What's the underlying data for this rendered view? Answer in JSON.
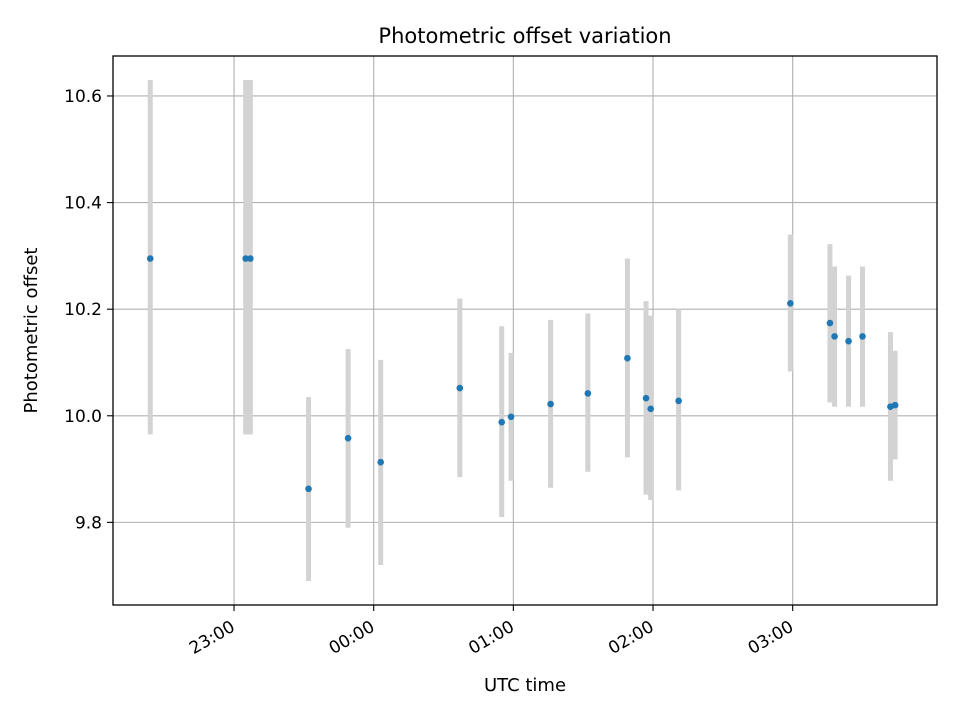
{
  "chart_data": {
    "type": "scatter",
    "title": "Photometric offset variation",
    "xlabel": "UTC time",
    "ylabel": "Photometric offset",
    "x_is_time": true,
    "xlim": [
      "22:08",
      "04:02"
    ],
    "ylim": [
      9.645,
      10.675
    ],
    "x_ticks": [
      "23:00",
      "00:00",
      "01:00",
      "02:00",
      "03:00"
    ],
    "y_ticks": [
      9.8,
      10.0,
      10.2,
      10.4,
      10.6
    ],
    "grid": true,
    "colors": {
      "point": "#1f77b4",
      "errorbar": "#d3d3d3",
      "grid": "#b0b0b0"
    },
    "points": [
      {
        "x": "22:24",
        "y": 10.295,
        "ylow": 9.965,
        "yhigh": 10.63
      },
      {
        "x": "23:05",
        "y": 10.295,
        "ylow": 9.965,
        "yhigh": 10.63
      },
      {
        "x": "23:07",
        "y": 10.295,
        "ylow": 9.965,
        "yhigh": 10.63
      },
      {
        "x": "23:32",
        "y": 9.863,
        "ylow": 9.69,
        "yhigh": 10.035
      },
      {
        "x": "23:49",
        "y": 9.958,
        "ylow": 9.79,
        "yhigh": 10.125
      },
      {
        "x": "00:03",
        "y": 9.913,
        "ylow": 9.72,
        "yhigh": 10.105
      },
      {
        "x": "00:37",
        "y": 10.052,
        "ylow": 9.885,
        "yhigh": 10.22
      },
      {
        "x": "00:55",
        "y": 9.988,
        "ylow": 9.81,
        "yhigh": 10.168
      },
      {
        "x": "00:59",
        "y": 9.998,
        "ylow": 9.878,
        "yhigh": 10.118
      },
      {
        "x": "01:16",
        "y": 10.022,
        "ylow": 9.865,
        "yhigh": 10.18
      },
      {
        "x": "01:32",
        "y": 10.042,
        "ylow": 9.895,
        "yhigh": 10.192
      },
      {
        "x": "01:49",
        "y": 10.108,
        "ylow": 9.922,
        "yhigh": 10.295
      },
      {
        "x": "01:57",
        "y": 10.033,
        "ylow": 9.852,
        "yhigh": 10.215
      },
      {
        "x": "01:59",
        "y": 10.013,
        "ylow": 9.842,
        "yhigh": 10.188
      },
      {
        "x": "02:11",
        "y": 10.028,
        "ylow": 9.86,
        "yhigh": 10.2
      },
      {
        "x": "02:59",
        "y": 10.211,
        "ylow": 10.083,
        "yhigh": 10.34
      },
      {
        "x": "03:16",
        "y": 10.174,
        "ylow": 10.025,
        "yhigh": 10.322
      },
      {
        "x": "03:18",
        "y": 10.149,
        "ylow": 10.017,
        "yhigh": 10.28
      },
      {
        "x": "03:24",
        "y": 10.14,
        "ylow": 10.017,
        "yhigh": 10.263
      },
      {
        "x": "03:30",
        "y": 10.149,
        "ylow": 10.017,
        "yhigh": 10.28
      },
      {
        "x": "03:42",
        "y": 10.017,
        "ylow": 9.878,
        "yhigh": 10.157
      },
      {
        "x": "03:44",
        "y": 10.02,
        "ylow": 9.918,
        "yhigh": 10.122
      }
    ]
  }
}
